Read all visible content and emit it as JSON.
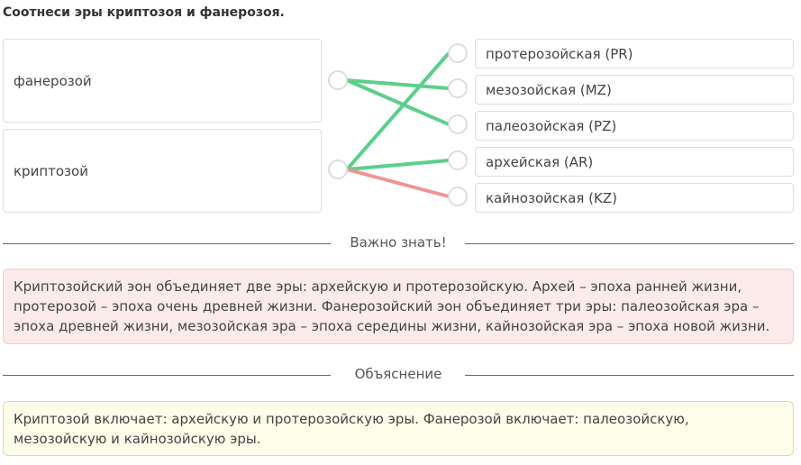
{
  "title": "Соотнеси эры криптозоя и фанерозоя.",
  "left": [
    "фанерозой",
    "криптозой"
  ],
  "right": [
    "протерозойская (PR)",
    "мезозойская (MZ)",
    "палеозойская (PZ)",
    "архейская (AR)",
    "кайнозойская (KZ)"
  ],
  "connections": [
    {
      "from": 0,
      "to": 1,
      "status": "correct"
    },
    {
      "from": 0,
      "to": 2,
      "status": "correct"
    },
    {
      "from": 1,
      "to": 0,
      "status": "correct"
    },
    {
      "from": 1,
      "to": 3,
      "status": "correct"
    },
    {
      "from": 1,
      "to": 4,
      "status": "wrong"
    }
  ],
  "colors": {
    "correct": "#5ccf8a",
    "wrong": "#ef9590"
  },
  "important": {
    "heading": "Важно знать!",
    "text": "Криптозойский эон объединяет две эры: архейскую и протерозойскую. Архей – эпоха ранней жизни, протерозой – эпоха очень древней жизни. Фанерозойский эон объединяет три эры: палеозойская эра – эпоха древней жизни, мезозойская эра – эпоха середины жизни, кайнозойская эра – эпоха новой жизни."
  },
  "explanation": {
    "heading": "Объяснение",
    "text": "Криптозой включает: архейскую и протерозойскую эры. Фанерозой включает: палеозойскую, мезозойскую и кайнозойскую эры."
  }
}
